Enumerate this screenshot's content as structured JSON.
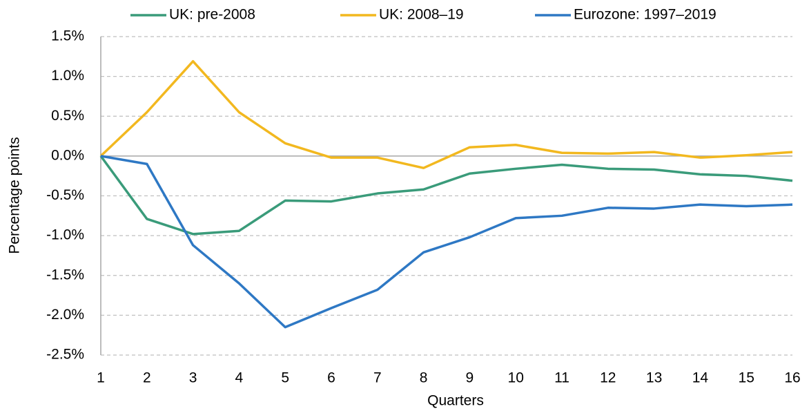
{
  "chart_data": {
    "type": "line",
    "x": [
      1,
      2,
      3,
      4,
      5,
      6,
      7,
      8,
      9,
      10,
      11,
      12,
      13,
      14,
      15,
      16
    ],
    "xlim": [
      1,
      16
    ],
    "xticks": [
      1,
      2,
      3,
      4,
      5,
      6,
      7,
      8,
      9,
      10,
      11,
      12,
      13,
      14,
      15,
      16
    ],
    "ylim": [
      -2.5,
      1.5
    ],
    "yticks": [
      {
        "value": -2.5,
        "label": "-2.5%"
      },
      {
        "value": -2.0,
        "label": "-2.0%"
      },
      {
        "value": -1.5,
        "label": "-1.5%"
      },
      {
        "value": -1.0,
        "label": "-1.0%"
      },
      {
        "value": -0.5,
        "label": "-0.5%"
      },
      {
        "value": 0,
        "label": "0.0%"
      },
      {
        "value": 0.5,
        "label": "0.5%"
      },
      {
        "value": 1.0,
        "label": "1.0%"
      },
      {
        "value": 1.5,
        "label": "1.5%"
      }
    ],
    "xlabel": "Quarters",
    "ylabel": "Percentage points",
    "grid": true,
    "legend": "top",
    "series": [
      {
        "name": "UK: pre-2008",
        "color": "#3a9b7a",
        "values": [
          0,
          -0.79,
          -0.98,
          -0.94,
          -0.56,
          -0.57,
          -0.47,
          -0.42,
          -0.22,
          -0.16,
          -0.11,
          -0.16,
          -0.17,
          -0.23,
          -0.25,
          -0.31
        ]
      },
      {
        "name": "UK: 2008–19",
        "color": "#f2b81f",
        "values": [
          0,
          0.55,
          1.19,
          0.55,
          0.16,
          -0.02,
          -0.02,
          -0.15,
          0.11,
          0.14,
          0.04,
          0.03,
          0.05,
          -0.02,
          0.01,
          0.05
        ]
      },
      {
        "name": "Eurozone: 1997–2019",
        "color": "#2e78c4",
        "values": [
          0,
          -0.1,
          -1.12,
          -1.6,
          -2.15,
          -1.91,
          -1.68,
          -1.21,
          -1.02,
          -0.78,
          -0.75,
          -0.65,
          -0.66,
          -0.61,
          -0.63,
          -0.61
        ]
      }
    ]
  }
}
